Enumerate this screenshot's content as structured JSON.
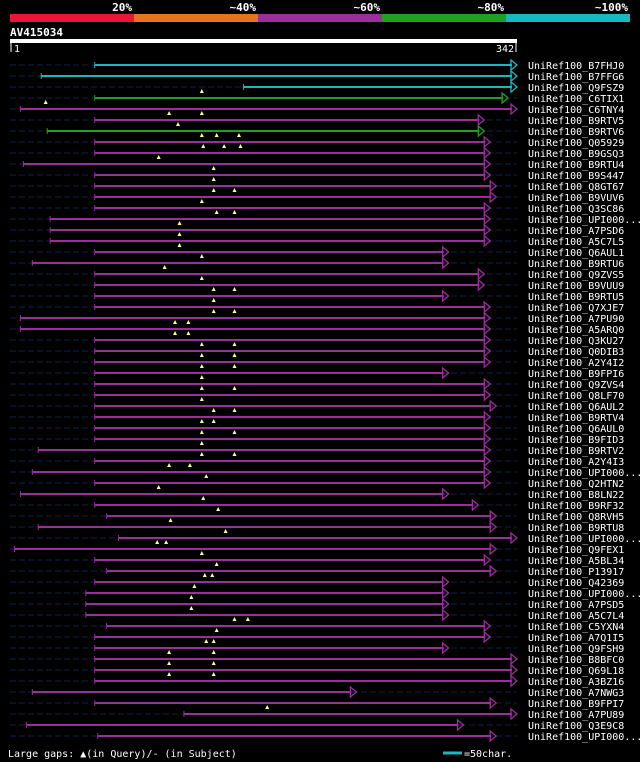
{
  "title": "AV415034",
  "legend_colors": [
    "#e8173a",
    "#e8731e",
    "#9a2e9a",
    "#1fa01f",
    "#18b8c0"
  ],
  "legend_labels": [
    "20%",
    "~40%",
    "~60%",
    "~80%",
    "~100%"
  ],
  "query_start_label": "1",
  "query_end_label": "342",
  "query_length": 342,
  "footer_text": "Large gaps: ▲(in Query)/- (in Subject)",
  "scale_text": "=50char.",
  "scale_color": "#18b8c0",
  "chart_data": {
    "type": "alignment",
    "query_length": 342,
    "hits": [
      {
        "name": "UniRef100_B7FHJ0",
        "start": 58,
        "end": 342,
        "color": "#18b8c0",
        "gaps": []
      },
      {
        "name": "UniRef100_B7FFG6",
        "start": 22,
        "end": 342,
        "color": "#18b8c0",
        "gaps": []
      },
      {
        "name": "UniRef100_Q9FSZ9",
        "start": 158,
        "end": 342,
        "color": "#18b8c0",
        "gaps": []
      },
      {
        "name": "UniRef100_C6TIX1",
        "start": 58,
        "end": 336,
        "color": "#1fa01f",
        "gaps": [
          130
        ]
      },
      {
        "name": "UniRef100_C6TNY4",
        "start": 8,
        "end": 342,
        "color": "#9a2e9a",
        "gaps": [
          25
        ]
      },
      {
        "name": "UniRef100_B9RTV5",
        "start": 58,
        "end": 320,
        "color": "#9a2e9a",
        "gaps": [
          108,
          130
        ]
      },
      {
        "name": "UniRef100_B9RTV6",
        "start": 26,
        "end": 320,
        "color": "#1fa01f",
        "gaps": [
          114
        ]
      },
      {
        "name": "UniRef100_Q05929",
        "start": 58,
        "end": 324,
        "color": "#9a2e9a",
        "gaps": [
          130,
          140,
          155
        ]
      },
      {
        "name": "UniRef100_B9GSQ3",
        "start": 58,
        "end": 324,
        "color": "#9a2e9a",
        "gaps": [
          131,
          145,
          156
        ]
      },
      {
        "name": "UniRef100_B9RTU4",
        "start": 10,
        "end": 324,
        "color": "#9a2e9a",
        "gaps": [
          101
        ]
      },
      {
        "name": "UniRef100_B9S447",
        "start": 58,
        "end": 324,
        "color": "#9a2e9a",
        "gaps": [
          138
        ]
      },
      {
        "name": "UniRef100_Q8GT67",
        "start": 58,
        "end": 328,
        "color": "#9a2e9a",
        "gaps": [
          138
        ]
      },
      {
        "name": "UniRef100_B9VUV6",
        "start": 58,
        "end": 328,
        "color": "#9a2e9a",
        "gaps": [
          138,
          152
        ]
      },
      {
        "name": "UniRef100_Q3SC86",
        "start": 58,
        "end": 324,
        "color": "#9a2e9a",
        "gaps": [
          130
        ]
      },
      {
        "name": "UniRef100_UPI000...",
        "start": 28,
        "end": 324,
        "color": "#9a2e9a",
        "gaps": [
          140,
          152
        ]
      },
      {
        "name": "UniRef100_A7PSD6",
        "start": 28,
        "end": 324,
        "color": "#9a2e9a",
        "gaps": [
          115
        ]
      },
      {
        "name": "UniRef100_A5C7L5",
        "start": 28,
        "end": 324,
        "color": "#9a2e9a",
        "gaps": [
          115
        ]
      },
      {
        "name": "UniRef100_Q6AUL1",
        "start": 58,
        "end": 296,
        "color": "#9a2e9a",
        "gaps": [
          115
        ]
      },
      {
        "name": "UniRef100_B9RTU6",
        "start": 16,
        "end": 296,
        "color": "#9a2e9a",
        "gaps": [
          130
        ]
      },
      {
        "name": "UniRef100_Q9ZVS5",
        "start": 58,
        "end": 320,
        "color": "#9a2e9a",
        "gaps": [
          105
        ]
      },
      {
        "name": "UniRef100_B9VUU9",
        "start": 58,
        "end": 320,
        "color": "#9a2e9a",
        "gaps": [
          130
        ]
      },
      {
        "name": "UniRef100_B9RTU5",
        "start": 58,
        "end": 296,
        "color": "#9a2e9a",
        "gaps": [
          138,
          152
        ]
      },
      {
        "name": "UniRef100_Q7XJE7",
        "start": 58,
        "end": 324,
        "color": "#9a2e9a",
        "gaps": [
          138
        ]
      },
      {
        "name": "UniRef100_A7PU90",
        "start": 8,
        "end": 324,
        "color": "#9a2e9a",
        "gaps": [
          138,
          152
        ]
      },
      {
        "name": "UniRef100_A5ARQ0",
        "start": 8,
        "end": 324,
        "color": "#9a2e9a",
        "gaps": [
          112,
          121
        ]
      },
      {
        "name": "UniRef100_Q3KU27",
        "start": 58,
        "end": 324,
        "color": "#9a2e9a",
        "gaps": [
          112,
          121
        ]
      },
      {
        "name": "UniRef100_Q0DIB3",
        "start": 58,
        "end": 324,
        "color": "#9a2e9a",
        "gaps": [
          130,
          152
        ]
      },
      {
        "name": "UniRef100_A2Y4I2",
        "start": 58,
        "end": 324,
        "color": "#9a2e9a",
        "gaps": [
          130,
          152
        ]
      },
      {
        "name": "UniRef100_B9FPI6",
        "start": 58,
        "end": 296,
        "color": "#9a2e9a",
        "gaps": [
          130,
          152
        ]
      },
      {
        "name": "UniRef100_Q9ZVS4",
        "start": 58,
        "end": 324,
        "color": "#9a2e9a",
        "gaps": [
          130
        ]
      },
      {
        "name": "UniRef100_Q8LF70",
        "start": 58,
        "end": 324,
        "color": "#9a2e9a",
        "gaps": [
          130,
          152
        ]
      },
      {
        "name": "UniRef100_Q6AUL2",
        "start": 58,
        "end": 328,
        "color": "#9a2e9a",
        "gaps": [
          130
        ]
      },
      {
        "name": "UniRef100_B9RTV4",
        "start": 58,
        "end": 324,
        "color": "#9a2e9a",
        "gaps": [
          138,
          152
        ]
      },
      {
        "name": "UniRef100_Q6AUL0",
        "start": 58,
        "end": 324,
        "color": "#9a2e9a",
        "gaps": [
          130,
          138
        ]
      },
      {
        "name": "UniRef100_B9FID3",
        "start": 58,
        "end": 324,
        "color": "#9a2e9a",
        "gaps": [
          130,
          152
        ]
      },
      {
        "name": "UniRef100_B9RTV2",
        "start": 20,
        "end": 324,
        "color": "#9a2e9a",
        "gaps": [
          130
        ]
      },
      {
        "name": "UniRef100_A2Y4I3",
        "start": 58,
        "end": 324,
        "color": "#9a2e9a",
        "gaps": [
          130,
          152
        ]
      },
      {
        "name": "UniRef100_UPI000...",
        "start": 16,
        "end": 324,
        "color": "#9a2e9a",
        "gaps": [
          108,
          122
        ]
      },
      {
        "name": "UniRef100_Q2HTN2",
        "start": 58,
        "end": 324,
        "color": "#9a2e9a",
        "gaps": [
          133
        ]
      },
      {
        "name": "UniRef100_B8LN22",
        "start": 8,
        "end": 296,
        "color": "#9a2e9a",
        "gaps": [
          101
        ]
      },
      {
        "name": "UniRef100_B9RF32",
        "start": 58,
        "end": 316,
        "color": "#9a2e9a",
        "gaps": [
          131
        ]
      },
      {
        "name": "UniRef100_Q8RVH5",
        "start": 66,
        "end": 328,
        "color": "#9a2e9a",
        "gaps": [
          141
        ]
      },
      {
        "name": "UniRef100_B9RTU8",
        "start": 20,
        "end": 328,
        "color": "#9a2e9a",
        "gaps": [
          109
        ]
      },
      {
        "name": "UniRef100_UPI000...",
        "start": 74,
        "end": 342,
        "color": "#9a2e9a",
        "gaps": [
          146
        ]
      },
      {
        "name": "UniRef100_Q9FEX1",
        "start": 4,
        "end": 328,
        "color": "#9a2e9a",
        "gaps": [
          100,
          106
        ]
      },
      {
        "name": "UniRef100_A5BL34",
        "start": 58,
        "end": 324,
        "color": "#9a2e9a",
        "gaps": [
          130
        ]
      },
      {
        "name": "UniRef100_P13917",
        "start": 66,
        "end": 328,
        "color": "#9a2e9a",
        "gaps": [
          140
        ]
      },
      {
        "name": "UniRef100_Q42369",
        "start": 58,
        "end": 296,
        "color": "#9a2e9a",
        "gaps": [
          132,
          137
        ]
      },
      {
        "name": "UniRef100_UPI000...",
        "start": 52,
        "end": 296,
        "color": "#9a2e9a",
        "gaps": [
          125
        ]
      },
      {
        "name": "UniRef100_A7PSD5",
        "start": 52,
        "end": 296,
        "color": "#9a2e9a",
        "gaps": [
          123
        ]
      },
      {
        "name": "UniRef100_A5C7L4",
        "start": 52,
        "end": 296,
        "color": "#9a2e9a",
        "gaps": [
          123
        ]
      },
      {
        "name": "UniRef100_C5YXN4",
        "start": 66,
        "end": 324,
        "color": "#9a2e9a",
        "gaps": [
          152,
          161
        ]
      },
      {
        "name": "UniRef100_A7Q1I5",
        "start": 58,
        "end": 324,
        "color": "#9a2e9a",
        "gaps": [
          140
        ]
      },
      {
        "name": "UniRef100_Q9FSH9",
        "start": 58,
        "end": 296,
        "color": "#9a2e9a",
        "gaps": [
          133,
          138
        ]
      },
      {
        "name": "UniRef100_B8BFC0",
        "start": 58,
        "end": 342,
        "color": "#9a2e9a",
        "gaps": [
          108,
          138
        ]
      },
      {
        "name": "UniRef100_Q69L18",
        "start": 58,
        "end": 342,
        "color": "#9a2e9a",
        "gaps": [
          108,
          138
        ]
      },
      {
        "name": "UniRef100_A3BZ16",
        "start": 58,
        "end": 342,
        "color": "#9a2e9a",
        "gaps": [
          108,
          138
        ]
      },
      {
        "name": "UniRef100_A7NWG3",
        "start": 16,
        "end": 234,
        "color": "#9a2e9a",
        "gaps": []
      },
      {
        "name": "UniRef100_B9FPI7",
        "start": 58,
        "end": 328,
        "color": "#9a2e9a",
        "gaps": []
      },
      {
        "name": "UniRef100_A7PU89",
        "start": 118,
        "end": 342,
        "color": "#9a2e9a",
        "gaps": [
          174
        ]
      },
      {
        "name": "UniRef100_Q3E9C8",
        "start": 12,
        "end": 306,
        "color": "#9a2e9a",
        "gaps": []
      },
      {
        "name": "UniRef100_UPI000...",
        "start": 60,
        "end": 328,
        "color": "#9a2e9a",
        "gaps": []
      }
    ]
  }
}
